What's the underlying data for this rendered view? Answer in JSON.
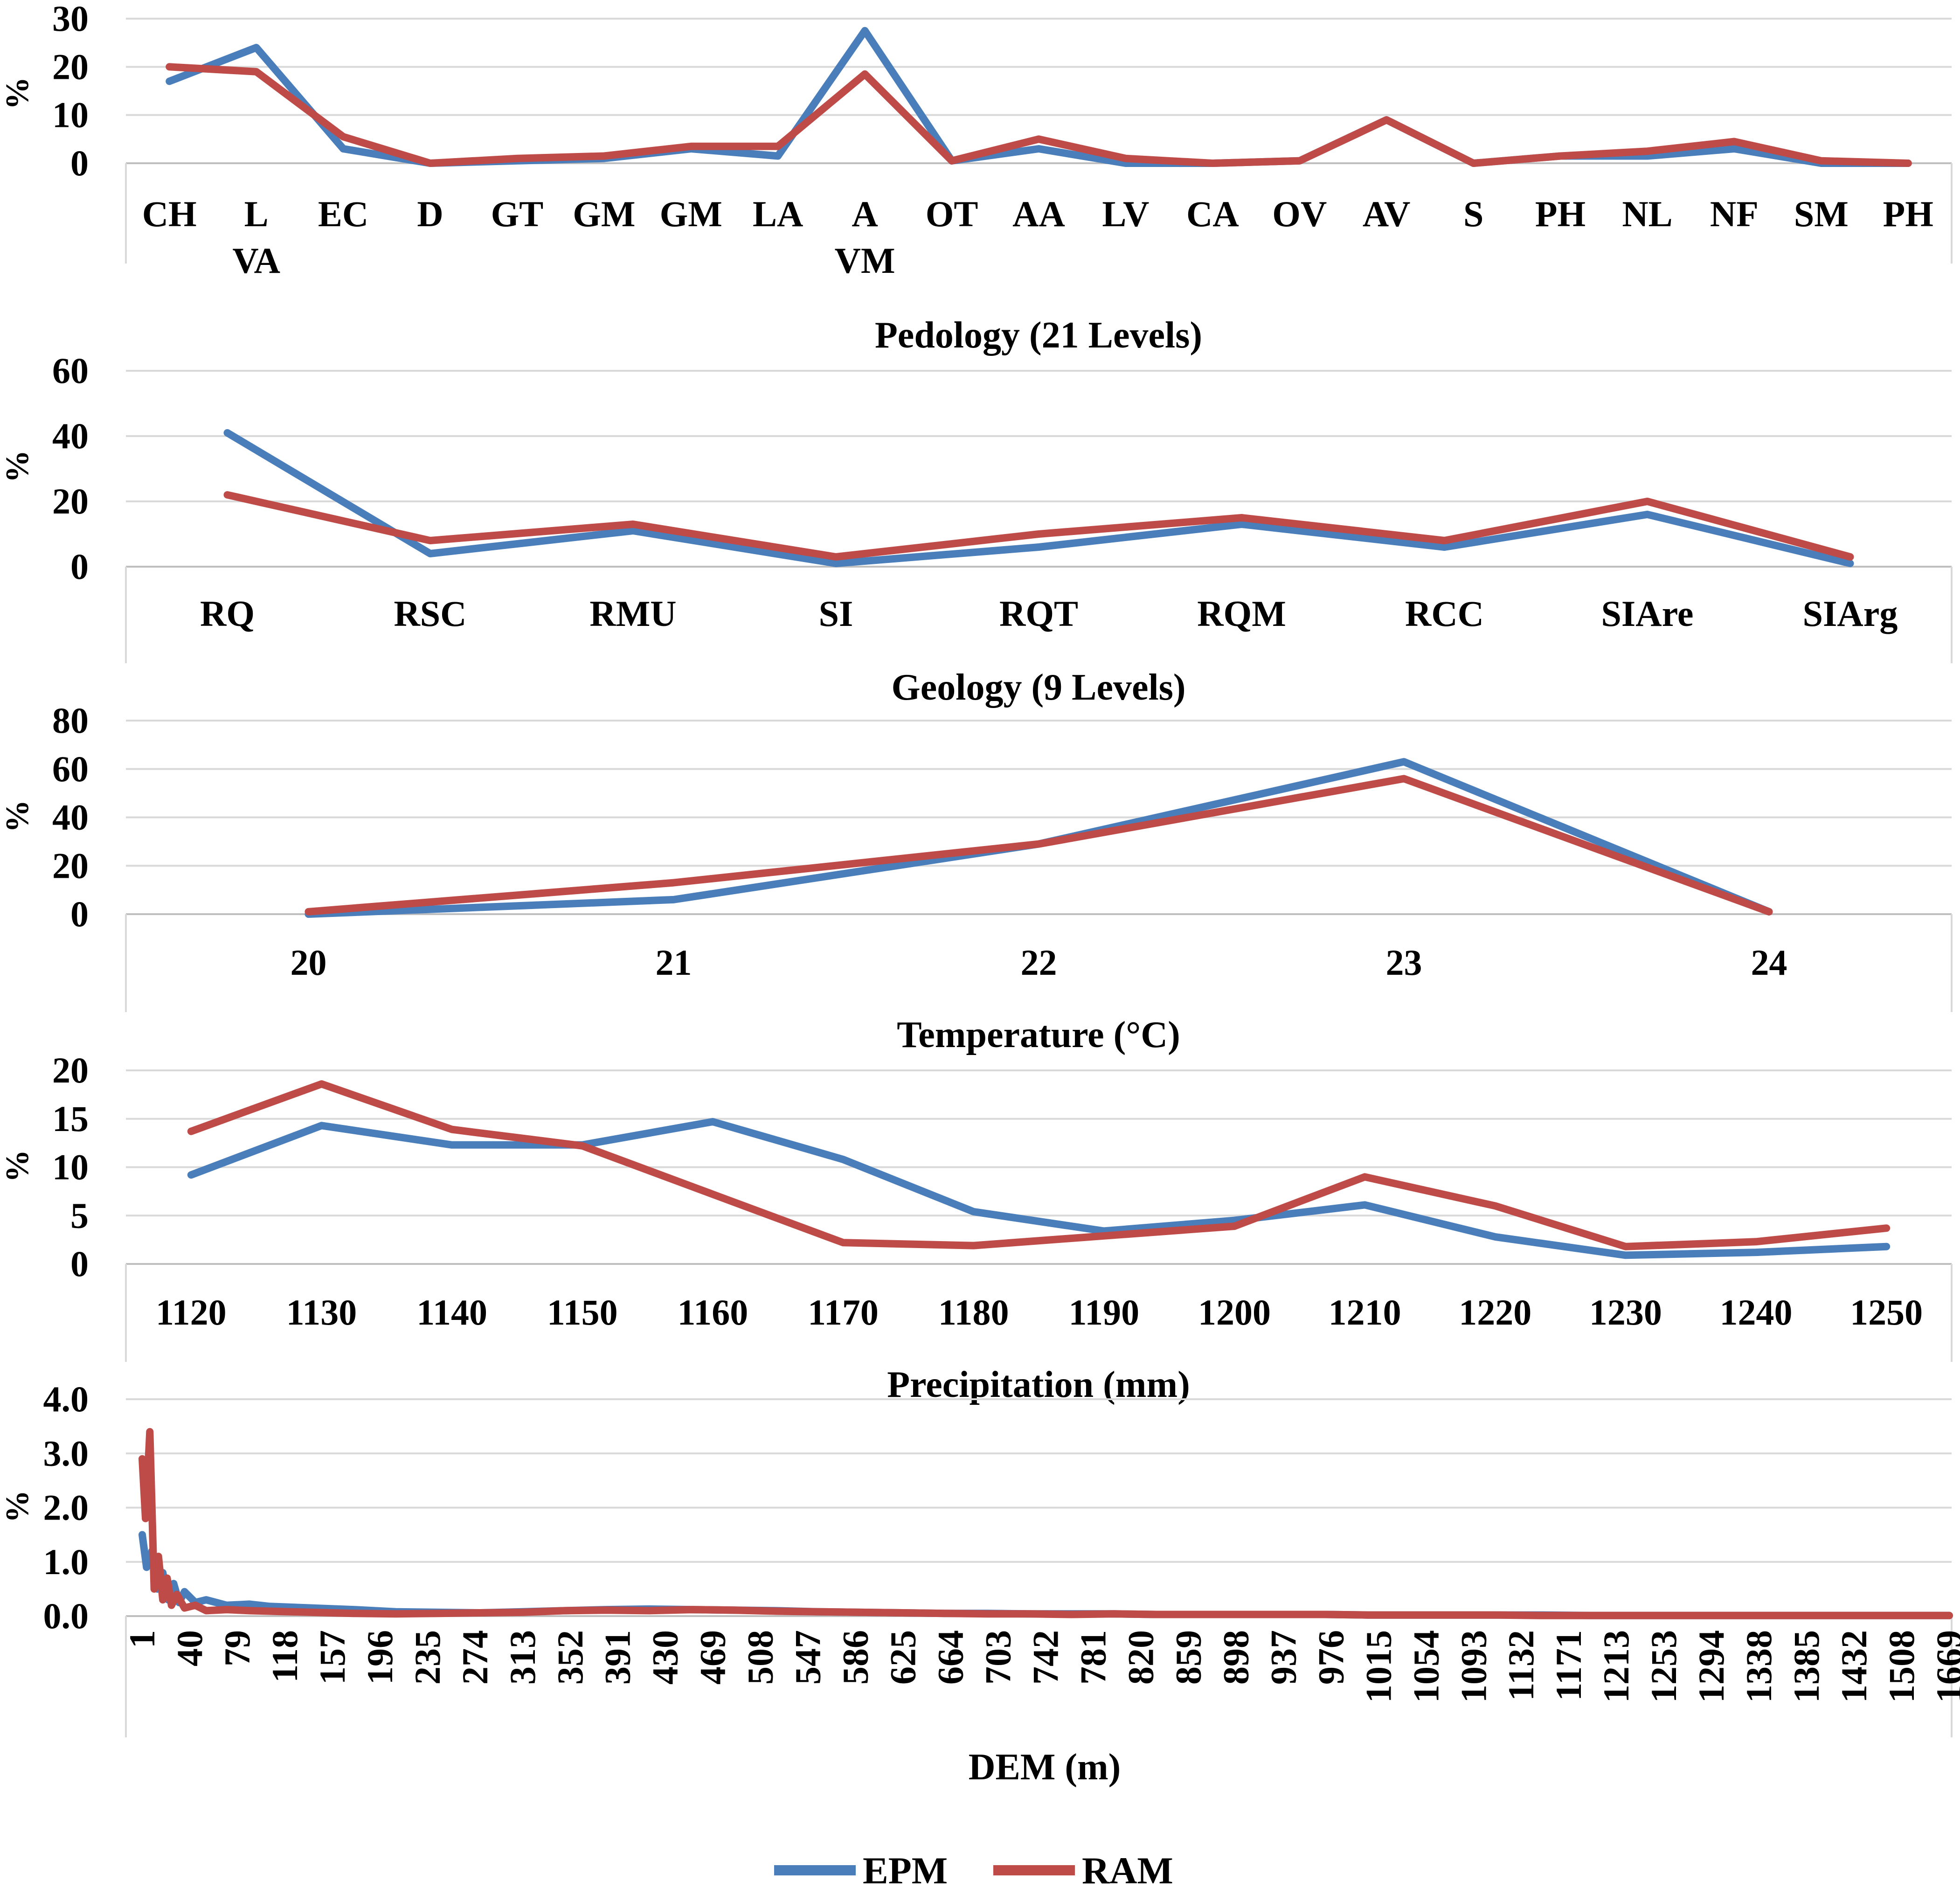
{
  "colors": {
    "epm": "#4a7ebb",
    "ram": "#be4b48",
    "grid": "#d9d9d9",
    "axis": "#bfbfbf"
  },
  "legend": {
    "series": [
      "EPM",
      "RAM"
    ]
  },
  "chart_data": [
    {
      "type": "line",
      "title": "Pedology (21 Levels)",
      "ylabel": "%",
      "ylim": [
        0,
        30
      ],
      "yticks": [
        "0",
        "10",
        "20",
        "30"
      ],
      "categories": [
        [
          "CH"
        ],
        [
          "L",
          "VA"
        ],
        [
          "EC"
        ],
        [
          "D"
        ],
        [
          "GT"
        ],
        [
          "GM"
        ],
        [
          "GM"
        ],
        [
          "LA"
        ],
        [
          "A",
          "VM"
        ],
        [
          "OT"
        ],
        [
          "AA"
        ],
        [
          "LV"
        ],
        [
          "CA"
        ],
        [
          "OV"
        ],
        [
          "AV"
        ],
        [
          "S"
        ],
        [
          "PH"
        ],
        [
          "NL"
        ],
        [
          "NF"
        ],
        [
          "SM"
        ],
        [
          "PH"
        ]
      ],
      "series": [
        {
          "name": "EPM",
          "values": [
            17,
            24,
            3,
            0,
            0.5,
            1,
            3,
            1.5,
            27.5,
            0.5,
            3,
            0,
            0,
            0.5,
            9,
            0,
            1.5,
            1.5,
            3,
            0,
            0
          ]
        },
        {
          "name": "RAM",
          "values": [
            20,
            19,
            5.5,
            0,
            1,
            1.5,
            3.5,
            3.5,
            18.5,
            0.5,
            5,
            1,
            0,
            0.5,
            9,
            0,
            1.5,
            2.5,
            4.5,
            0.5,
            0
          ]
        }
      ]
    },
    {
      "type": "line",
      "title": "Geology (9 Levels)",
      "ylabel": "%",
      "ylim": [
        0,
        60
      ],
      "yticks": [
        "0",
        "20",
        "40",
        "60"
      ],
      "categories": [
        [
          "RQ"
        ],
        [
          "RSC"
        ],
        [
          "RMU"
        ],
        [
          "SI"
        ],
        [
          "RQT"
        ],
        [
          "RQM"
        ],
        [
          "RCC"
        ],
        [
          "SIAre"
        ],
        [
          "SIArg"
        ]
      ],
      "series": [
        {
          "name": "EPM",
          "values": [
            41,
            4,
            11,
            1,
            6,
            13,
            6,
            16,
            1
          ]
        },
        {
          "name": "RAM",
          "values": [
            22,
            8,
            13,
            3,
            10,
            15,
            8,
            20,
            3
          ]
        }
      ]
    },
    {
      "type": "line",
      "title": "Temperature (°C)",
      "ylabel": "%",
      "ylim": [
        0,
        80
      ],
      "yticks": [
        "0",
        "20",
        "40",
        "60",
        "80"
      ],
      "categories": [
        [
          "20"
        ],
        [
          "21"
        ],
        [
          "22"
        ],
        [
          "23"
        ],
        [
          "24"
        ]
      ],
      "series": [
        {
          "name": "EPM",
          "values": [
            0,
            6,
            29,
            63,
            1
          ]
        },
        {
          "name": "RAM",
          "values": [
            1,
            13,
            29,
            56,
            1
          ]
        }
      ]
    },
    {
      "type": "line",
      "title": "Precipitation (mm)",
      "ylabel": "%",
      "ylim": [
        0,
        20
      ],
      "yticks": [
        "0",
        "5",
        "10",
        "15",
        "20"
      ],
      "categories": [
        [
          "1120"
        ],
        [
          "1130"
        ],
        [
          "1140"
        ],
        [
          "1150"
        ],
        [
          "1160"
        ],
        [
          "1170"
        ],
        [
          "1180"
        ],
        [
          "1190"
        ],
        [
          "1200"
        ],
        [
          "1210"
        ],
        [
          "1220"
        ],
        [
          "1230"
        ],
        [
          "1240"
        ],
        [
          "1250"
        ]
      ],
      "series": [
        {
          "name": "EPM",
          "values": [
            9.2,
            14.3,
            12.3,
            12.3,
            14.7,
            10.8,
            5.4,
            3.4,
            4.5,
            6.1,
            2.8,
            0.9,
            1.2,
            1.8
          ]
        },
        {
          "name": "RAM",
          "values": [
            13.7,
            18.6,
            13.9,
            12.2,
            7.2,
            2.2,
            1.9,
            2.9,
            3.9,
            9.0,
            6.0,
            1.8,
            2.3,
            3.7
          ]
        }
      ]
    },
    {
      "type": "line",
      "title": "DEM (m)",
      "ylabel": "%",
      "ylim": [
        0,
        4
      ],
      "yticks": [
        "0.0",
        "1.0",
        "2.0",
        "3.0",
        "4.0"
      ],
      "xrange": [
        1,
        1669
      ],
      "categories": [
        [
          "1"
        ],
        [
          "40"
        ],
        [
          "79"
        ],
        [
          "118"
        ],
        [
          "157"
        ],
        [
          "196"
        ],
        [
          "235"
        ],
        [
          "274"
        ],
        [
          "313"
        ],
        [
          "352"
        ],
        [
          "391"
        ],
        [
          "430"
        ],
        [
          "469"
        ],
        [
          "508"
        ],
        [
          "547"
        ],
        [
          "586"
        ],
        [
          "625"
        ],
        [
          "664"
        ],
        [
          "703"
        ],
        [
          "742"
        ],
        [
          "781"
        ],
        [
          "820"
        ],
        [
          "859"
        ],
        [
          "898"
        ],
        [
          "937"
        ],
        [
          "976"
        ],
        [
          "1015"
        ],
        [
          "1054"
        ],
        [
          "1093"
        ],
        [
          "1132"
        ],
        [
          "1171"
        ],
        [
          "1213"
        ],
        [
          "1253"
        ],
        [
          "1294"
        ],
        [
          "1338"
        ],
        [
          "1385"
        ],
        [
          "1432"
        ],
        [
          "1508"
        ],
        [
          "1669"
        ]
      ],
      "series": [
        {
          "name": "EPM",
          "x": [
            1,
            5,
            10,
            15,
            20,
            25,
            30,
            35,
            40,
            50,
            60,
            79,
            100,
            118,
            157,
            196,
            235,
            274,
            313,
            352,
            391,
            430,
            469,
            508,
            547,
            586,
            625,
            664,
            703,
            742,
            781,
            820,
            859,
            898,
            937,
            976,
            1015,
            1054,
            1093,
            1132,
            1171,
            1213,
            1253,
            1294,
            1338,
            1385,
            1432,
            1508,
            1669
          ],
          "values": [
            1.5,
            0.9,
            1.2,
            0.5,
            0.8,
            0.3,
            0.6,
            0.25,
            0.45,
            0.25,
            0.3,
            0.2,
            0.22,
            0.18,
            0.15,
            0.12,
            0.08,
            0.07,
            0.06,
            0.08,
            0.1,
            0.12,
            0.13,
            0.12,
            0.11,
            0.1,
            0.08,
            0.07,
            0.06,
            0.05,
            0.05,
            0.04,
            0.04,
            0.04,
            0.03,
            0.03,
            0.03,
            0.03,
            0.03,
            0.02,
            0.02,
            0.02,
            0.02,
            0.02,
            0.01,
            0.01,
            0.01,
            0.01,
            0.01
          ]
        },
        {
          "name": "RAM",
          "x": [
            1,
            4,
            8,
            12,
            16,
            20,
            24,
            28,
            33,
            40,
            50,
            60,
            79,
            100,
            118,
            157,
            196,
            235,
            274,
            313,
            352,
            391,
            430,
            469,
            508,
            547,
            586,
            625,
            664,
            703,
            742,
            781,
            820,
            859,
            898,
            937,
            976,
            1015,
            1054,
            1093,
            1132,
            1171,
            1213,
            1253,
            1294,
            1338,
            1385,
            1432,
            1508,
            1669
          ],
          "values": [
            2.9,
            1.8,
            3.4,
            0.5,
            1.1,
            0.3,
            0.7,
            0.2,
            0.4,
            0.15,
            0.2,
            0.1,
            0.12,
            0.1,
            0.09,
            0.07,
            0.05,
            0.04,
            0.05,
            0.06,
            0.07,
            0.1,
            0.11,
            0.1,
            0.12,
            0.11,
            0.09,
            0.08,
            0.07,
            0.06,
            0.05,
            0.04,
            0.04,
            0.03,
            0.04,
            0.03,
            0.03,
            0.03,
            0.03,
            0.03,
            0.02,
            0.02,
            0.02,
            0.02,
            0.01,
            0.01,
            0.01,
            0.01,
            0.01,
            0.01
          ]
        }
      ]
    }
  ]
}
